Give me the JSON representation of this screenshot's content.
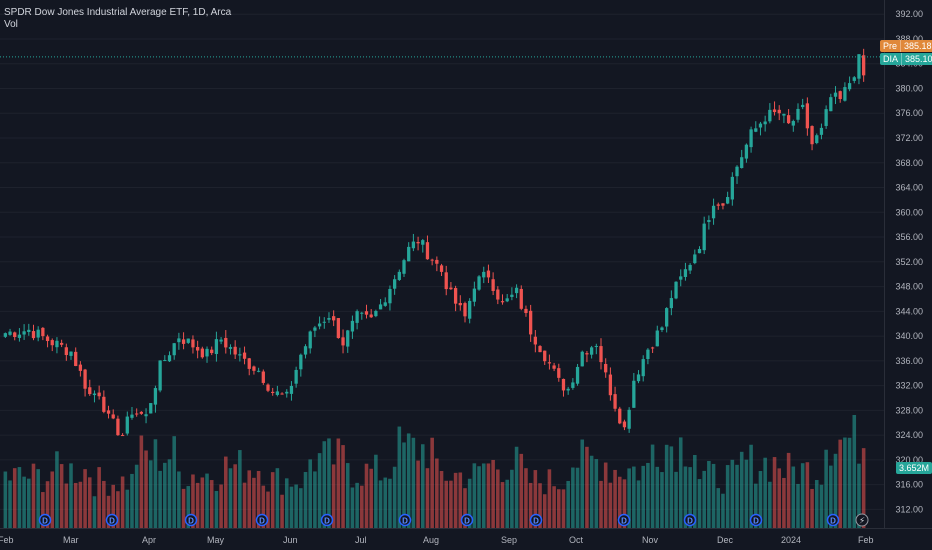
{
  "header": {
    "title": "SPDR Dow Jones Industrial Average ETF, 1D, Arca",
    "volume_label": "Vol"
  },
  "badges": {
    "pre": {
      "tag": "Pre",
      "value": "385.18",
      "color": "#e0883a"
    },
    "symbol": {
      "tag": "DIA",
      "value": "385.10",
      "color": "#26a69a"
    },
    "volume": {
      "value": "3.652M",
      "color": "#26a69a"
    }
  },
  "colors": {
    "up": "#26a69a",
    "down": "#ef5350",
    "background": "#131722",
    "grid": "#1e222d"
  },
  "chart_data": {
    "type": "candlestick",
    "title": "SPDR Dow Jones Industrial Average ETF, 1D, Arca",
    "y_range": [
      309,
      393
    ],
    "y_ticks": [
      312,
      316,
      320,
      324,
      328,
      332,
      336,
      340,
      344,
      348,
      352,
      356,
      360,
      364,
      368,
      372,
      376,
      380,
      384,
      388,
      392
    ],
    "x_labels": [
      "Feb",
      "Mar",
      "Apr",
      "May",
      "Jun",
      "Jul",
      "Aug",
      "Sep",
      "Oct",
      "Nov",
      "Dec",
      "2024",
      "Feb"
    ],
    "close_trend": [
      [
        0,
        340.5
      ],
      [
        5,
        341.0
      ],
      [
        10,
        339.0
      ],
      [
        14,
        337.5
      ],
      [
        16,
        334.0
      ],
      [
        18,
        330.5
      ],
      [
        20,
        331.0
      ],
      [
        22,
        326.5
      ],
      [
        25,
        324.0
      ],
      [
        27,
        328.0
      ],
      [
        30,
        327.0
      ],
      [
        33,
        335.0
      ],
      [
        37,
        340.0
      ],
      [
        40,
        338.5
      ],
      [
        43,
        337.0
      ],
      [
        46,
        339.5
      ],
      [
        50,
        336.5
      ],
      [
        54,
        334.5
      ],
      [
        57,
        331.0
      ],
      [
        60,
        330.0
      ],
      [
        63,
        337.0
      ],
      [
        66,
        341.5
      ],
      [
        69,
        343.5
      ],
      [
        72,
        339.0
      ],
      [
        75,
        343.0
      ],
      [
        78,
        342.5
      ],
      [
        80,
        345.0
      ],
      [
        83,
        349.5
      ],
      [
        86,
        354.0
      ],
      [
        88,
        355.5
      ],
      [
        90,
        353.5
      ],
      [
        93,
        350.5
      ],
      [
        95,
        346.5
      ],
      [
        98,
        343.0
      ],
      [
        100,
        348.5
      ],
      [
        103,
        350.0
      ],
      [
        106,
        345.0
      ],
      [
        109,
        347.0
      ],
      [
        112,
        341.0
      ],
      [
        115,
        337.0
      ],
      [
        118,
        332.5
      ],
      [
        120,
        331.5
      ],
      [
        123,
        337.5
      ],
      [
        126,
        339.0
      ],
      [
        128,
        333.5
      ],
      [
        130,
        329.0
      ],
      [
        132,
        325.0
      ],
      [
        134,
        333.0
      ],
      [
        137,
        338.0
      ],
      [
        140,
        341.5
      ],
      [
        142,
        346.5
      ],
      [
        145,
        350.5
      ],
      [
        148,
        355.0
      ],
      [
        151,
        362.0
      ],
      [
        153,
        361.5
      ],
      [
        156,
        367.5
      ],
      [
        159,
        372.5
      ],
      [
        162,
        375.5
      ],
      [
        165,
        376.0
      ],
      [
        167,
        374.0
      ],
      [
        170,
        376.5
      ],
      [
        172,
        371.0
      ],
      [
        174,
        373.0
      ],
      [
        176,
        378.5
      ],
      [
        178,
        378.0
      ],
      [
        180,
        381.0
      ],
      [
        182,
        384.5
      ],
      [
        183,
        382.0
      ]
    ],
    "volume_trend": [
      0.55,
      0.62,
      0.5,
      0.78,
      0.58,
      0.66,
      0.52,
      0.74,
      0.6,
      0.85,
      0.57,
      0.68,
      0.5,
      0.72,
      0.63,
      0.9,
      0.55,
      0.7,
      0.62,
      0.95
    ]
  }
}
